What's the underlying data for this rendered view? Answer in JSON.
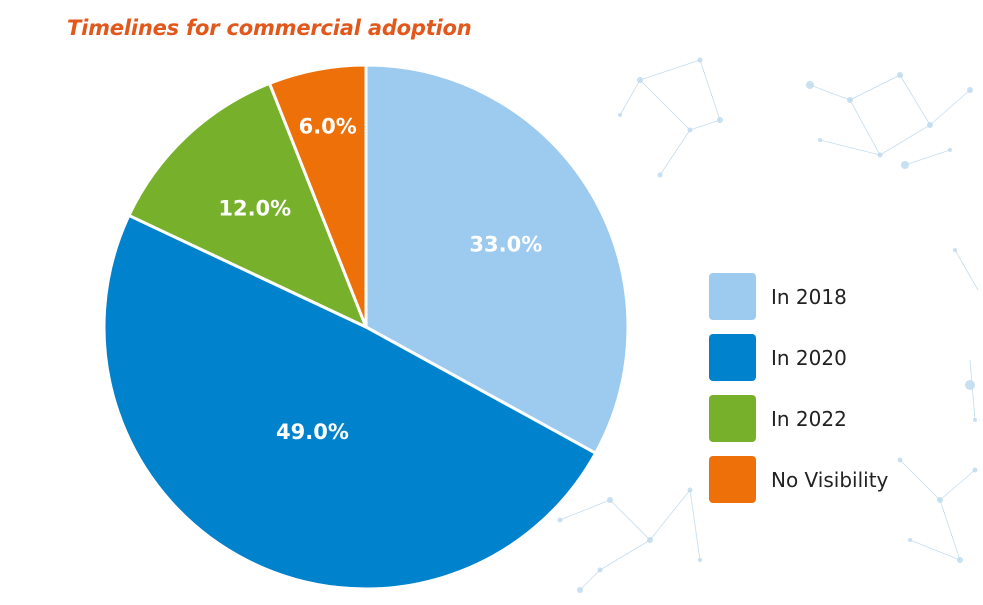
{
  "chart_data": {
    "type": "pie",
    "title": "Timelines for commercial adoption",
    "categories": [
      "In 2018",
      "In 2020",
      "In 2022",
      "No Visibility"
    ],
    "values": [
      33.0,
      49.0,
      12.0,
      6.0
    ],
    "data_labels": [
      "33.0%",
      "49.0%",
      "12.0%",
      "6.0%"
    ],
    "colors": [
      "#9dcbf0",
      "#0182cd",
      "#77b02b",
      "#ed7009"
    ],
    "legend_position": "right"
  }
}
